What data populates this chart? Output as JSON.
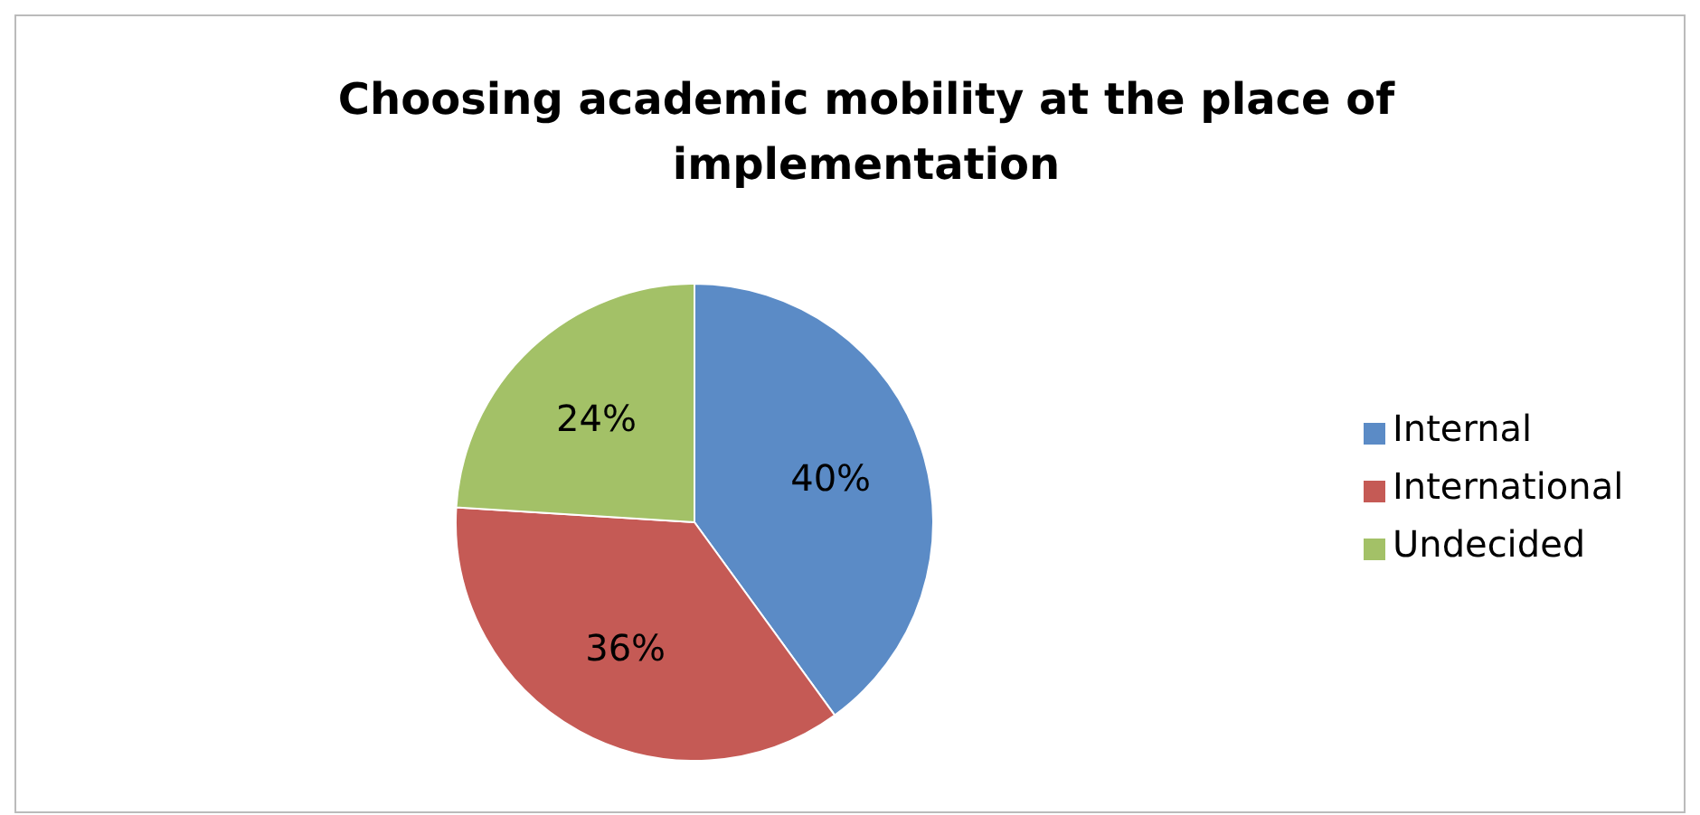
{
  "chart_data": {
    "type": "pie",
    "title": "Choosing academic mobility at the place of implementation",
    "categories": [
      "Internal",
      "International",
      "Undecided"
    ],
    "values": [
      40,
      36,
      24
    ],
    "colors": [
      "#5b8bc6",
      "#c55a55",
      "#a3c167"
    ],
    "value_labels": [
      "40%",
      "36%",
      "24%"
    ],
    "legend": "right"
  }
}
